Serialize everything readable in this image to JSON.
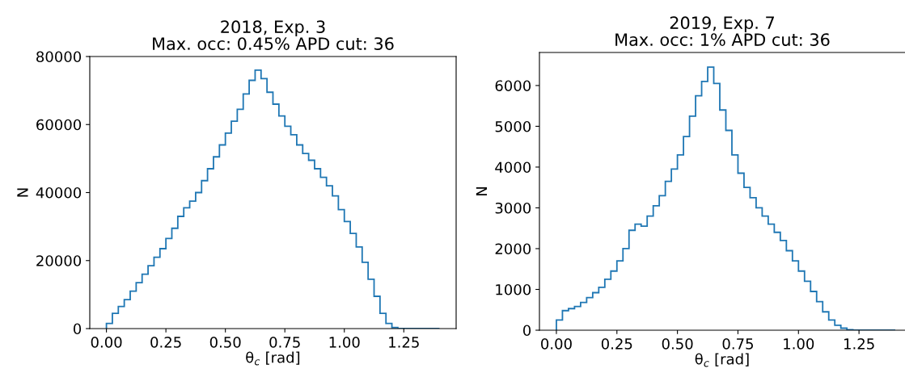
{
  "chart_data": [
    {
      "type": "histogram",
      "title": "2018, Exp. 3\nMax. occ: 0.45% APD cut: 36",
      "xlabel": "θ$_{c}$ [rad]",
      "ylabel": "N",
      "color": "#1f77b4",
      "bins": [
        0,
        0.025,
        0.05,
        0.075,
        0.1,
        0.125,
        0.15,
        0.175,
        0.2,
        0.225,
        0.25,
        0.275,
        0.3,
        0.325,
        0.35,
        0.375,
        0.4,
        0.425,
        0.45,
        0.475,
        0.5,
        0.525,
        0.55,
        0.575,
        0.6,
        0.625,
        0.65,
        0.675,
        0.7,
        0.725,
        0.75,
        0.775,
        0.8,
        0.825,
        0.85,
        0.875,
        0.9,
        0.925,
        0.95,
        0.975,
        1.0,
        1.025,
        1.05,
        1.075,
        1.1,
        1.125,
        1.15,
        1.175,
        1.2,
        1.225,
        1.25,
        1.275,
        1.3,
        1.325,
        1.35,
        1.375,
        1.4
      ],
      "values": [
        1500,
        4500,
        6500,
        8500,
        11000,
        13500,
        16000,
        18500,
        21000,
        23500,
        26500,
        29500,
        33000,
        35500,
        37500,
        40000,
        43500,
        47000,
        50500,
        54000,
        57500,
        61000,
        64500,
        69000,
        73000,
        76000,
        73500,
        69500,
        66000,
        62500,
        59500,
        57000,
        54000,
        51500,
        49500,
        47000,
        44500,
        42000,
        39000,
        35000,
        31500,
        28000,
        24000,
        19500,
        14500,
        9500,
        4500,
        1500,
        300,
        0,
        0,
        0,
        0,
        0,
        0,
        0
      ],
      "xlim": [
        -0.07,
        1.47
      ],
      "ylim": [
        0,
        80000
      ],
      "xticks": [
        {
          "value": 0,
          "label": "0.00"
        },
        {
          "value": 0.25,
          "label": "0.25"
        },
        {
          "value": 0.5,
          "label": "0.50"
        },
        {
          "value": 0.75,
          "label": "0.75"
        },
        {
          "value": 1.0,
          "label": "1.00"
        },
        {
          "value": 1.25,
          "label": "1.25"
        }
      ],
      "yticks": [
        0,
        20000,
        40000,
        60000,
        80000
      ]
    },
    {
      "type": "histogram",
      "title": "2019, Exp. 7\nMax. occ: 1% APD cut: 36",
      "xlabel": "θ$_{c}$ [rad]",
      "ylabel": "N",
      "color": "#1f77b4",
      "bins": [
        0,
        0.025,
        0.05,
        0.075,
        0.1,
        0.125,
        0.15,
        0.175,
        0.2,
        0.225,
        0.25,
        0.275,
        0.3,
        0.325,
        0.35,
        0.375,
        0.4,
        0.425,
        0.45,
        0.475,
        0.5,
        0.525,
        0.55,
        0.575,
        0.6,
        0.625,
        0.65,
        0.675,
        0.7,
        0.725,
        0.75,
        0.775,
        0.8,
        0.825,
        0.85,
        0.875,
        0.9,
        0.925,
        0.95,
        0.975,
        1.0,
        1.025,
        1.05,
        1.075,
        1.1,
        1.125,
        1.15,
        1.175,
        1.2,
        1.225,
        1.25,
        1.275,
        1.3,
        1.325,
        1.35,
        1.375,
        1.4
      ],
      "values": [
        250,
        480,
        530,
        580,
        680,
        800,
        920,
        1050,
        1250,
        1450,
        1700,
        2000,
        2450,
        2600,
        2550,
        2800,
        3050,
        3300,
        3650,
        3950,
        4300,
        4750,
        5250,
        5750,
        6100,
        6450,
        6050,
        5400,
        4900,
        4300,
        3850,
        3500,
        3250,
        3000,
        2800,
        2600,
        2400,
        2200,
        1950,
        1700,
        1450,
        1200,
        950,
        700,
        450,
        250,
        120,
        50,
        10,
        0,
        0,
        0,
        0,
        0,
        0,
        0
      ],
      "xlim": [
        -0.07,
        1.44
      ],
      "ylim": [
        0,
        6810
      ],
      "xticks": [
        {
          "value": 0,
          "label": "0.00"
        },
        {
          "value": 0.25,
          "label": "0.25"
        },
        {
          "value": 0.5,
          "label": "0.50"
        },
        {
          "value": 0.75,
          "label": "0.75"
        },
        {
          "value": 1.0,
          "label": "1.00"
        },
        {
          "value": 1.25,
          "label": "1.25"
        }
      ],
      "yticks": [
        0,
        1000,
        2000,
        3000,
        4000,
        5000,
        6000
      ]
    }
  ]
}
